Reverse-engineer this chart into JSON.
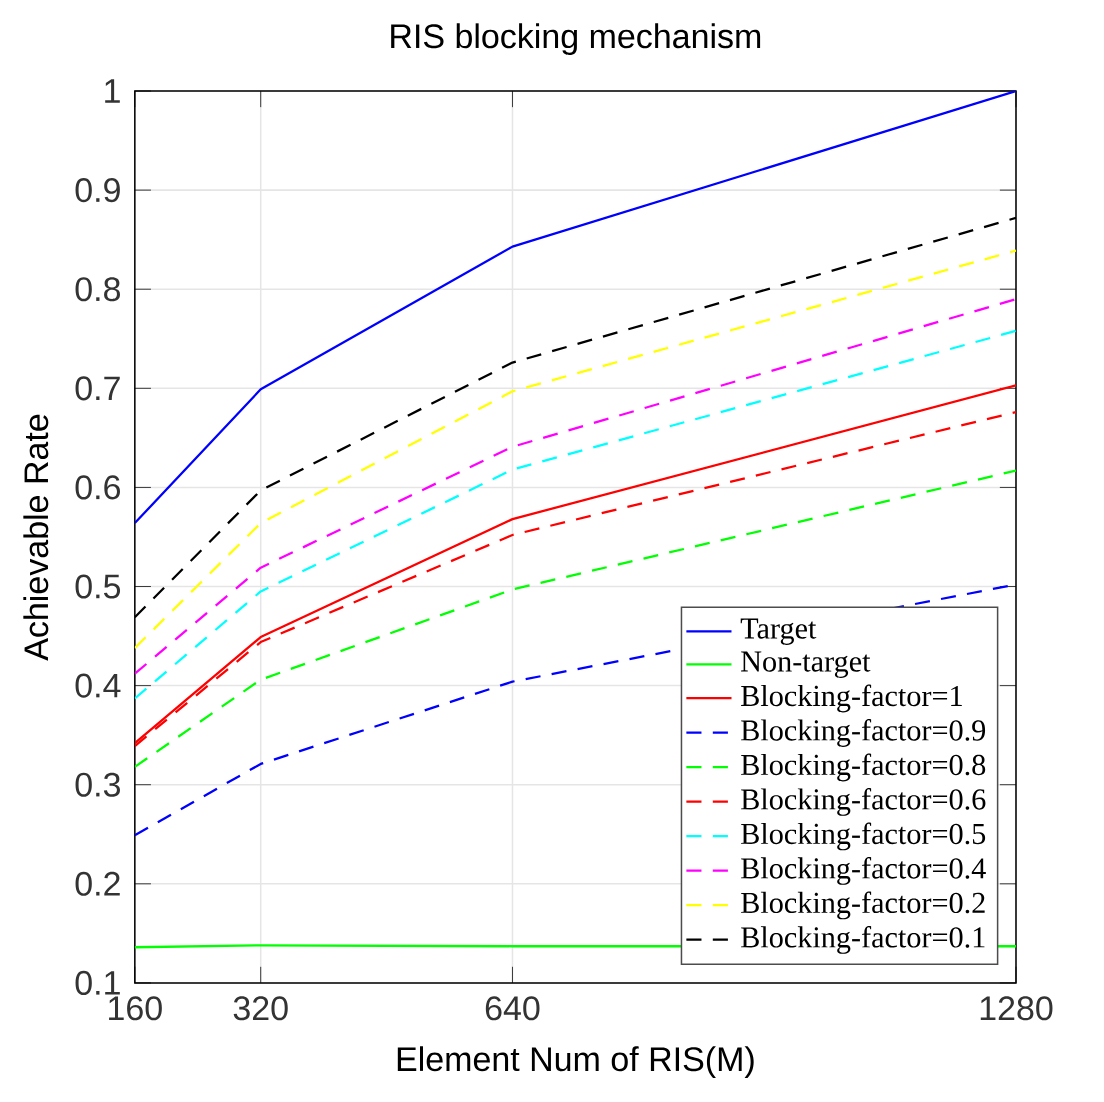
{
  "chart_data": {
    "type": "line",
    "title": "RIS blocking mechanism",
    "xlabel": "Element Num of RIS(M)",
    "ylabel": "Achievable Rate",
    "x": [
      160,
      320,
      640,
      1280
    ],
    "xlim": [
      160,
      1280
    ],
    "xticks": [
      160,
      320,
      640,
      1280
    ],
    "ylim": [
      0.1,
      1
    ],
    "yticks": [
      0.1,
      0.2,
      0.3,
      0.4,
      0.5,
      0.6,
      0.7,
      0.8,
      0.9,
      1
    ],
    "grid": true,
    "legend": "bottom right",
    "series": [
      {
        "name": "Target",
        "color": "#0000ff",
        "line_style": "solid",
        "values": [
          0.564,
          0.699,
          0.843,
          1.0
        ]
      },
      {
        "name": "Non-target",
        "color": "#00ff00",
        "line_style": "solid",
        "values": [
          0.136,
          0.138,
          0.137,
          0.137
        ]
      },
      {
        "name": "Blocking-factor=1",
        "color": "#ff0000",
        "line_style": "solid",
        "values": [
          0.342,
          0.449,
          0.568,
          0.703
        ]
      },
      {
        "name": "Blocking-factor=0.9",
        "color": "#0000ff",
        "line_style": "dashed",
        "values": [
          0.249,
          0.321,
          0.404,
          0.502
        ]
      },
      {
        "name": "Blocking-factor=0.8",
        "color": "#00ff00",
        "line_style": "dashed",
        "values": [
          0.318,
          0.406,
          0.497,
          0.617
        ]
      },
      {
        "name": "Blocking-factor=0.6",
        "color": "#ff0000",
        "line_style": "dashed",
        "values": [
          0.339,
          0.444,
          0.552,
          0.676
        ]
      },
      {
        "name": "Blocking-factor=0.5",
        "color": "#00ffff",
        "line_style": "dashed",
        "values": [
          0.387,
          0.495,
          0.618,
          0.758
        ]
      },
      {
        "name": "Blocking-factor=0.4",
        "color": "#ff00ff",
        "line_style": "dashed",
        "values": [
          0.412,
          0.519,
          0.641,
          0.79
        ]
      },
      {
        "name": "Blocking-factor=0.2",
        "color": "#ffff00",
        "line_style": "dashed",
        "values": [
          0.438,
          0.564,
          0.697,
          0.839
        ]
      },
      {
        "name": "Blocking-factor=0.1",
        "color": "#000000",
        "line_style": "dashed",
        "values": [
          0.469,
          0.597,
          0.726,
          0.872
        ]
      }
    ]
  }
}
